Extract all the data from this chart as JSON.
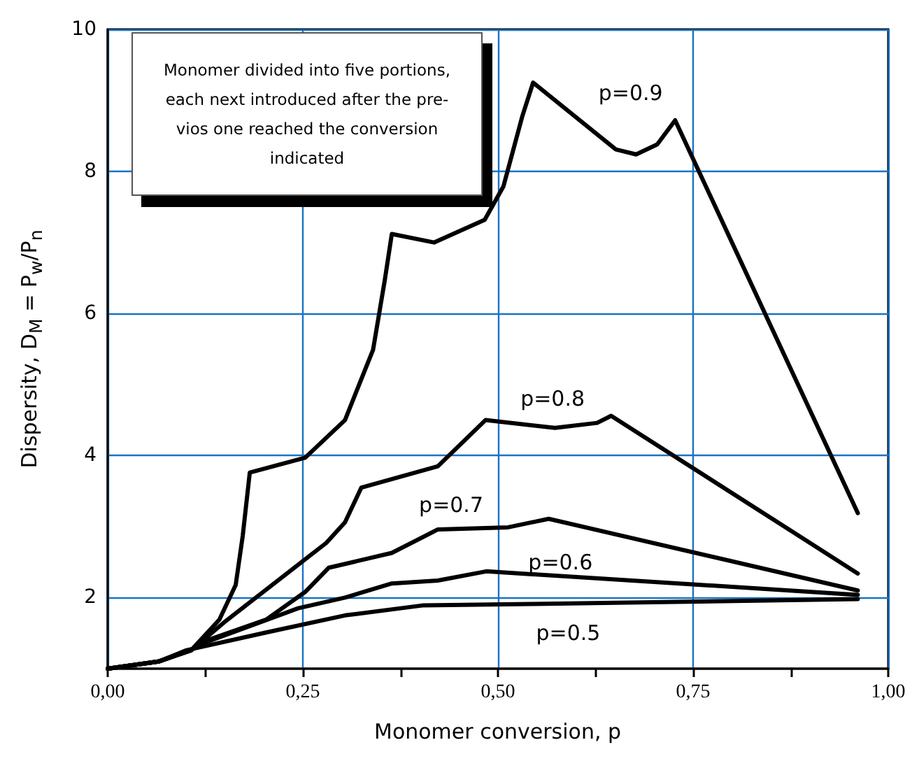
{
  "chart_data": {
    "type": "line",
    "xlabel": "Monomer conversion,  p",
    "ylabel": "Dispersity, D$_{M}$ = P$_{w}$/P$_{n}$",
    "annotations": [
      "Monomer divided into five portions,\neach next introduced after the pre-\nvios one reached the conversion\nindicated"
    ],
    "series": [
      {
        "name": "p=0.9",
        "color": "#000000",
        "x": [
          0,
          0.065,
          0.107,
          0.143,
          0.164,
          0.173,
          0.182,
          0.253,
          0.304,
          0.34,
          0.355,
          0.364,
          0.418,
          0.483,
          0.507,
          0.531,
          0.545,
          0.651,
          0.677,
          0.704,
          0.727,
          0.961
        ],
        "values": [
          1,
          1.1,
          1.26,
          1.69,
          2.18,
          2.87,
          3.76,
          3.97,
          4.5,
          5.49,
          6.47,
          7.12,
          7.0,
          7.32,
          7.79,
          8.77,
          9.25,
          8.31,
          8.24,
          8.38,
          8.72,
          3.19
        ]
      },
      {
        "name": "p=0.8",
        "color": "#000000",
        "x": [
          0,
          0.065,
          0.107,
          0.149,
          0.253,
          0.28,
          0.304,
          0.325,
          0.423,
          0.484,
          0.573,
          0.627,
          0.645,
          0.961
        ],
        "values": [
          1,
          1.1,
          1.26,
          1.65,
          2.54,
          2.77,
          3.06,
          3.55,
          3.85,
          4.5,
          4.39,
          4.46,
          4.56,
          2.34
        ]
      },
      {
        "name": "p=0.7",
        "color": "#000000",
        "x": [
          0,
          0.065,
          0.107,
          0.125,
          0.203,
          0.253,
          0.283,
          0.364,
          0.423,
          0.513,
          0.565,
          0.961
        ],
        "values": [
          1,
          1.1,
          1.26,
          1.39,
          1.69,
          2.08,
          2.42,
          2.63,
          2.96,
          2.99,
          3.11,
          2.1
        ]
      },
      {
        "name": "p=0.6",
        "color": "#000000",
        "x": [
          0,
          0.065,
          0.107,
          0.113,
          0.185,
          0.244,
          0.304,
          0.364,
          0.423,
          0.485,
          0.961
        ],
        "values": [
          1,
          1.1,
          1.26,
          1.32,
          1.61,
          1.85,
          2.0,
          2.2,
          2.24,
          2.37,
          2.04
        ]
      },
      {
        "name": "p=0.5",
        "color": "#000000",
        "x": [
          0,
          0.065,
          0.101,
          0.203,
          0.304,
          0.403,
          0.543,
          0.961
        ],
        "values": [
          1,
          1.1,
          1.26,
          1.51,
          1.75,
          1.89,
          1.91,
          1.98
        ]
      }
    ],
    "xlim": [
      0,
      1
    ],
    "xticks": [
      {
        "value": 0,
        "label": "0,00"
      },
      {
        "value": 0.125,
        "label": null
      },
      {
        "value": 0.25,
        "label": "0,25"
      },
      {
        "value": 0.375,
        "label": null
      },
      {
        "value": 0.5,
        "label": "0,50"
      },
      {
        "value": 0.625,
        "label": null
      },
      {
        "value": 0.75,
        "label": "0,75"
      },
      {
        "value": 0.875,
        "label": null
      },
      {
        "value": 1,
        "label": "1,00"
      }
    ],
    "ylim": [
      1,
      10
    ],
    "yticks": [
      2,
      4,
      6,
      8,
      10
    ],
    "grid": true,
    "marker": "none",
    "line_style": "solid"
  }
}
